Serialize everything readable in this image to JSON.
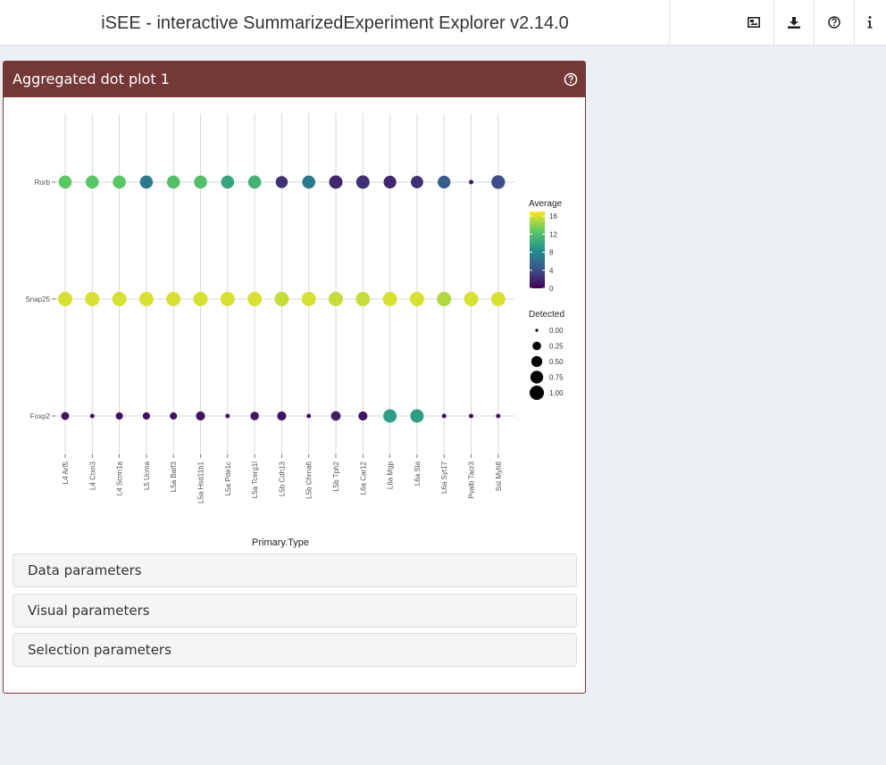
{
  "header": {
    "title": "iSEE - interactive SummarizedExperiment Explorer v2.14.0",
    "buttons": [
      {
        "name": "image-icon"
      },
      {
        "name": "download-icon"
      },
      {
        "name": "help-circle-icon"
      },
      {
        "name": "info-icon"
      }
    ]
  },
  "panel": {
    "title": "Aggregated dot plot 1",
    "color": "#743837",
    "help_icon": "help-circle-icon",
    "sections": [
      {
        "label": "Data parameters"
      },
      {
        "label": "Visual parameters"
      },
      {
        "label": "Selection parameters"
      }
    ]
  },
  "chart_data": {
    "type": "scatter",
    "title": "",
    "xlabel": "Primary.Type",
    "ylabel": "",
    "categories": [
      "L4 Arf5",
      "L4 Ctxn3",
      "L4 Scnn1a",
      "L5 Ucma",
      "L5a Batf3",
      "L5a Hsd11b1",
      "L5a Pde1c",
      "L5a Tcerg1l",
      "L5b Cdh13",
      "L5b Chrna6",
      "L5b Tph2",
      "L6a Car12",
      "L6a Mgp",
      "L6a Sla",
      "L6a Syt17",
      "Pvalb Tacr3",
      "Sst Myh8"
    ],
    "genes": [
      "Rorb",
      "Snap25",
      "Foxp2"
    ],
    "series": [
      {
        "name": "Rorb",
        "average": [
          12.5,
          12.5,
          12.5,
          7.0,
          12.0,
          12.0,
          10.0,
          11.0,
          2.5,
          7.0,
          2.0,
          2.5,
          2.0,
          2.5,
          5.0,
          1.0,
          4.0
        ],
        "detected": [
          0.8,
          0.8,
          0.8,
          0.8,
          0.8,
          0.8,
          0.8,
          0.8,
          0.65,
          0.8,
          0.85,
          0.85,
          0.75,
          0.7,
          0.75,
          0.02,
          0.9
        ]
      },
      {
        "name": "Snap25",
        "average": [
          16,
          16,
          16,
          16,
          16,
          16,
          16,
          16,
          15.5,
          16,
          15.5,
          15.5,
          16,
          16,
          15,
          16,
          16
        ],
        "detected": [
          1,
          1,
          1,
          1,
          1,
          1,
          1,
          1,
          1,
          1,
          1,
          1,
          1,
          1,
          1,
          1,
          1
        ]
      },
      {
        "name": "Foxp2",
        "average": [
          1.0,
          0.5,
          0.8,
          0.5,
          0.8,
          1.0,
          0.5,
          1.0,
          1.0,
          0.5,
          1.5,
          1.0,
          9.5,
          9.5,
          0.5,
          0.5,
          0.5
        ],
        "detected": [
          0.2,
          0.02,
          0.15,
          0.15,
          0.15,
          0.3,
          0.02,
          0.25,
          0.3,
          0.02,
          0.35,
          0.3,
          0.85,
          0.85,
          0.02,
          0.02,
          0.02
        ]
      }
    ],
    "legend": {
      "color_title": "Average",
      "color_ticks": [
        16,
        12,
        8,
        4,
        0
      ],
      "color_range": [
        0,
        17
      ],
      "size_title": "Detected",
      "size_ticks": [
        "0.00",
        "0.25",
        "0.50",
        "0.75",
        "1.00"
      ],
      "placement": "right"
    },
    "grid": true
  }
}
